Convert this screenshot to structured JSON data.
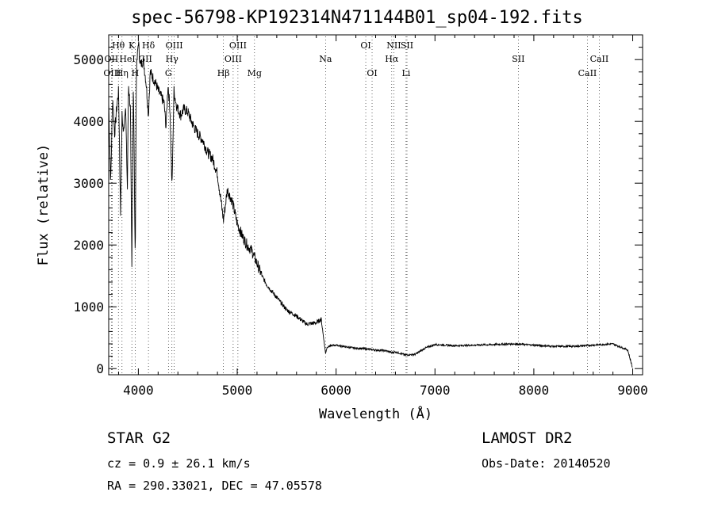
{
  "chart_data": {
    "type": "line",
    "title": "spec-56798-KP192314N471144B01_sp04-192.fits",
    "xlabel": "Wavelength (Å)",
    "ylabel": "Flux (relative)",
    "xlim": [
      3700,
      9100
    ],
    "ylim": [
      -100,
      5400
    ],
    "xticks": [
      4000,
      5000,
      6000,
      7000,
      8000,
      9000
    ],
    "yticks": [
      0,
      1000,
      2000,
      3000,
      4000,
      5000
    ],
    "series": [
      {
        "x": [
          3700,
          3720,
          3740,
          3760,
          3780,
          3800,
          3820,
          3835,
          3850,
          3870,
          3889,
          3900,
          3920,
          3934,
          3950,
          3968,
          3980,
          4000,
          4020,
          4050,
          4080,
          4102,
          4120,
          4150,
          4180,
          4200,
          4230,
          4260,
          4280,
          4300,
          4320,
          4340,
          4360,
          4380,
          4400,
          4430,
          4460,
          4500,
          4550,
          4600,
          4650,
          4700,
          4750,
          4800,
          4861,
          4900,
          4950,
          5000,
          5050,
          5100,
          5150,
          5200,
          5250,
          5300,
          5400,
          5500,
          5600,
          5700,
          5800,
          5850,
          5893,
          5910,
          5950,
          6000,
          6100,
          6200,
          6300,
          6400,
          6500,
          6563,
          6600,
          6700,
          6800,
          6900,
          7000,
          7200,
          7400,
          7600,
          7800,
          8000,
          8200,
          8400,
          8600,
          8800,
          8950,
          9000
        ],
        "y": [
          4300,
          3000,
          4400,
          3800,
          4200,
          4500,
          2500,
          4100,
          3800,
          4300,
          2900,
          4600,
          4200,
          1600,
          4700,
          1700,
          4800,
          5300,
          4900,
          5000,
          4600,
          4100,
          4800,
          4700,
          4600,
          4500,
          4400,
          4300,
          3900,
          4600,
          4200,
          2900,
          4500,
          4300,
          4200,
          4100,
          4200,
          4150,
          3950,
          3800,
          3700,
          3500,
          3400,
          3150,
          2400,
          2900,
          2700,
          2350,
          2150,
          2000,
          1900,
          1700,
          1500,
          1350,
          1150,
          950,
          850,
          720,
          740,
          800,
          250,
          350,
          370,
          380,
          350,
          330,
          320,
          300,
          290,
          260,
          270,
          220,
          230,
          330,
          390,
          370,
          380,
          390,
          400,
          380,
          360,
          360,
          380,
          400,
          300,
          0
        ]
      }
    ],
    "annotations": [
      {
        "label": "Hθ",
        "x": 3798,
        "row": 1,
        "line": true
      },
      {
        "label": "K",
        "x": 3934,
        "row": 1,
        "line": true
      },
      {
        "label": "Hδ",
        "x": 4102,
        "row": 1,
        "line": true
      },
      {
        "label": "OII",
        "x": 3727,
        "row": 2,
        "line": true
      },
      {
        "label": "HeI",
        "x": 3889,
        "row": 2,
        "line": false
      },
      {
        "label": "OIII",
        "x": 3735,
        "row": 3,
        "line": true
      },
      {
        "label": "Hη",
        "x": 3835,
        "row": 3,
        "line": true
      },
      {
        "label": "H",
        "x": 3968,
        "row": 3,
        "line": true
      },
      {
        "label": "GII",
        "x": 4070,
        "row": 2,
        "line": false
      },
      {
        "label": "OIII",
        "x": 4363,
        "row": 1,
        "line": true
      },
      {
        "label": "Hγ",
        "x": 4340,
        "row": 2,
        "line": true
      },
      {
        "label": "G",
        "x": 4304,
        "row": 3,
        "line": true
      },
      {
        "label": "Hβ",
        "x": 4861,
        "row": 3,
        "line": true
      },
      {
        "label": "OIII",
        "x": 4959,
        "row": 2,
        "line": true
      },
      {
        "label": "OIII",
        "x": 5007,
        "row": 1,
        "line": true
      },
      {
        "label": "Mg",
        "x": 5175,
        "row": 3,
        "line": true
      },
      {
        "label": "Na",
        "x": 5893,
        "row": 2,
        "line": true
      },
      {
        "label": "OI",
        "x": 6300,
        "row": 1,
        "line": true
      },
      {
        "label": "OI",
        "x": 6364,
        "row": 3,
        "line": true
      },
      {
        "label": "Hα",
        "x": 6563,
        "row": 2,
        "line": true
      },
      {
        "label": "NII",
        "x": 6584,
        "row": 1,
        "line": true
      },
      {
        "label": "SII",
        "x": 6717,
        "row": 1,
        "line": true
      },
      {
        "label": "Li",
        "x": 6708,
        "row": 3,
        "line": true
      },
      {
        "label": "SII",
        "x": 7843,
        "row": 2,
        "line": true
      },
      {
        "label": "CaII",
        "x": 8662,
        "row": 2,
        "line": true
      },
      {
        "label": "CaII",
        "x": 8542,
        "row": 3,
        "line": true
      }
    ]
  },
  "info": {
    "class_label": "STAR    G2",
    "survey": "LAMOST DR2",
    "cz": "cz = 0.9 ± 26.1 km/s",
    "obs_date": "Obs-Date: 20140520",
    "coords": "RA = 290.33021, DEC =  47.05578"
  }
}
